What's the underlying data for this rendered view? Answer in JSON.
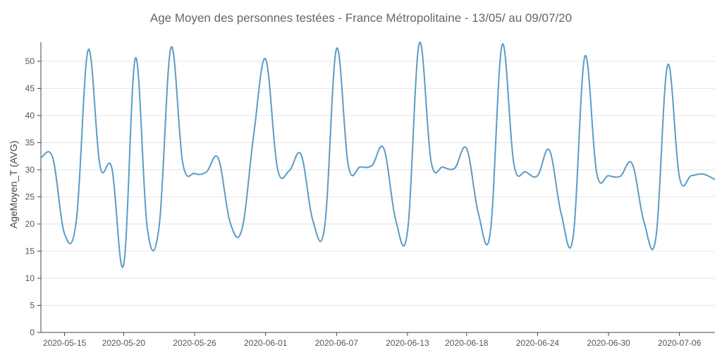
{
  "chart_data": {
    "type": "line",
    "title": "Age Moyen des personnes testées - France Métropolitaine -  13/05/ au 09/07/20",
    "ylabel": "AgeMoyen_T (AVG)",
    "xlabel": "",
    "ylim": [
      0,
      53.5
    ],
    "yticks": [
      0,
      5,
      10,
      15,
      20,
      25,
      30,
      35,
      40,
      45,
      50
    ],
    "grid": true,
    "xticks": [
      "2020-05-15",
      "2020-05-20",
      "2020-05-26",
      "2020-06-01",
      "2020-06-07",
      "2020-06-13",
      "2020-06-18",
      "2020-06-24",
      "2020-06-30",
      "2020-07-06"
    ],
    "x": [
      "2020-05-13",
      "2020-05-14",
      "2020-05-15",
      "2020-05-16",
      "2020-05-17",
      "2020-05-18",
      "2020-05-19",
      "2020-05-20",
      "2020-05-21",
      "2020-05-22",
      "2020-05-23",
      "2020-05-24",
      "2020-05-25",
      "2020-05-26",
      "2020-05-27",
      "2020-05-28",
      "2020-05-29",
      "2020-05-30",
      "2020-05-31",
      "2020-06-01",
      "2020-06-02",
      "2020-06-03",
      "2020-06-04",
      "2020-06-05",
      "2020-06-06",
      "2020-06-07",
      "2020-06-08",
      "2020-06-09",
      "2020-06-10",
      "2020-06-11",
      "2020-06-12",
      "2020-06-13",
      "2020-06-14",
      "2020-06-15",
      "2020-06-16",
      "2020-06-17",
      "2020-06-18",
      "2020-06-19",
      "2020-06-20",
      "2020-06-21",
      "2020-06-22",
      "2020-06-23",
      "2020-06-24",
      "2020-06-25",
      "2020-06-26",
      "2020-06-27",
      "2020-06-28",
      "2020-06-29",
      "2020-06-30",
      "2020-07-01",
      "2020-07-02",
      "2020-07-03",
      "2020-07-04",
      "2020-07-05",
      "2020-07-06",
      "2020-07-07",
      "2020-07-08",
      "2020-07-09"
    ],
    "series": [
      {
        "name": "",
        "color": "#5b9cc6",
        "values": [
          32.2,
          32.2,
          18.2,
          20.7,
          52.1,
          30.7,
          30.3,
          12.5,
          50.6,
          19.2,
          19.6,
          52.5,
          31.2,
          29.3,
          29.6,
          32.1,
          20.3,
          19.0,
          36.5,
          50.4,
          30.3,
          29.8,
          32.8,
          20.6,
          19.6,
          52.3,
          30.7,
          30.5,
          30.8,
          33.9,
          20.8,
          18.6,
          53.3,
          31.5,
          30.5,
          30.3,
          33.9,
          21.9,
          18.4,
          53.0,
          31.0,
          29.6,
          28.9,
          33.6,
          21.9,
          17.5,
          50.9,
          29.4,
          28.9,
          28.8,
          31.1,
          20.4,
          17.4,
          49.3,
          28.6,
          28.9,
          29.2,
          28.2
        ]
      }
    ]
  }
}
